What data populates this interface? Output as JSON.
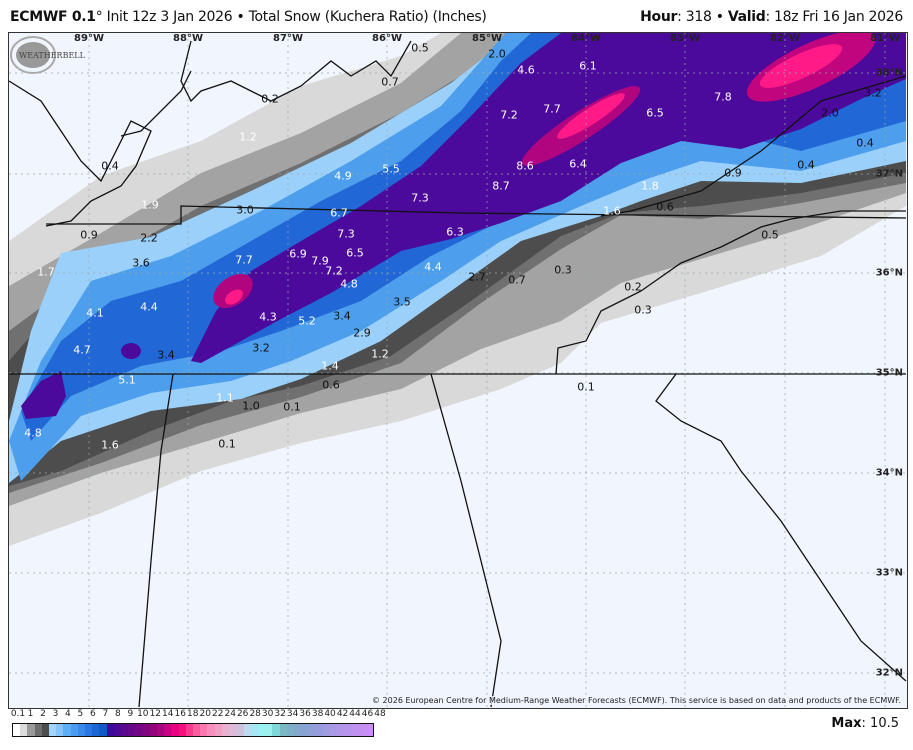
{
  "header": {
    "model": "ECMWF 0.1",
    "model_suffix": "° Init 12z 3 Jan 2026 • Total Snow (Kuchera Ratio) (Inches)",
    "hour_label": "Hour",
    "hour_value": ": 318 • ",
    "valid_label": "Valid",
    "valid_value": ": 18z Fri 16 Jan 2026"
  },
  "map": {
    "longitudes": [
      "89°W",
      "88°W",
      "87°W",
      "86°W",
      "85°W",
      "84°W",
      "83°W",
      "82°W",
      "81°W"
    ],
    "latitudes": [
      "38°N",
      "37°N",
      "36°N",
      "35°N",
      "34°N",
      "33°N",
      "32°N"
    ],
    "snow_labels": [
      "0.5",
      "0.7",
      "0.2",
      "1.2",
      "0.4",
      "4.9",
      "5.5",
      "7.3",
      "1.9",
      "3.0",
      "6.7",
      "0.9",
      "2.2",
      "7.3",
      "6.3",
      "2.0",
      "4.6",
      "6.1",
      "7.2",
      "7.7",
      "6.5",
      "7.8",
      "3.2",
      "2.0",
      "0.4",
      "8.6",
      "6.4",
      "0.4",
      "8.7",
      "0.9",
      "1.8",
      "1.6",
      "0.6",
      "0.5",
      "3.6",
      "7.7",
      "6.9",
      "7.9",
      "6.5",
      "7.2",
      "4.4",
      "1.7",
      "4.8",
      "3.5",
      "4.1",
      "4.4",
      "4.3",
      "5.2",
      "3.4",
      "2.9",
      "4.7",
      "3.4",
      "3.2",
      "1.2",
      "1.4",
      "5.1",
      "0.6",
      "1.1",
      "1.0",
      "0.1",
      "4.8",
      "1.6",
      "0.1",
      "2.7",
      "0.7",
      "0.3",
      "0.2",
      "0.3",
      "0.1"
    ],
    "copyright": "© 2026 European Centre for Medium-Range Weather Forecasts (ECMWF). This service is based on data and products of the ECMWF.",
    "logo_text": "WEATHERBELL"
  },
  "legend": {
    "labels": [
      "0.1",
      "1",
      "2",
      "3",
      "4",
      "5",
      "6",
      "7",
      "8",
      "9",
      "10",
      "12",
      "14",
      "16",
      "18",
      "20",
      "22",
      "24",
      "26",
      "28",
      "30",
      "32",
      "34",
      "36",
      "38",
      "40",
      "42",
      "44",
      "46",
      "48"
    ],
    "colors": [
      "#ffffff",
      "#dcdcdc",
      "#9a9a9a",
      "#6e6e6e",
      "#4d4d4d",
      "#a3d4fb",
      "#86c4fa",
      "#5eaef5",
      "#4a9dee",
      "#3a8aea",
      "#2a76e2",
      "#1d66d6",
      "#1258c6",
      "#3c0b9a",
      "#4a0a94",
      "#58098e",
      "#650889",
      "#740784",
      "#82067f",
      "#93057a",
      "#a8047e",
      "#c80382",
      "#e8027f",
      "#f5127f",
      "#f73b8f",
      "#f85e9f",
      "#f978ad",
      "#f68fbd",
      "#f29fc6",
      "#eab0d0",
      "#dcbad8",
      "#cfc2dc",
      "#bcdbef",
      "#a7e6f4",
      "#9af2f2",
      "#9cf0f0",
      "#7fd8d8",
      "#7ab8c4",
      "#7eafc8",
      "#82a8cc",
      "#88a3d2",
      "#8fa0d8",
      "#989cdd",
      "#a09ce2",
      "#a89ae6",
      "#b097e9",
      "#b895ec",
      "#c092ef",
      "#c690f2",
      "#cc8ef4"
    ],
    "max_label": "Max",
    "max_value": ": 10.5"
  }
}
